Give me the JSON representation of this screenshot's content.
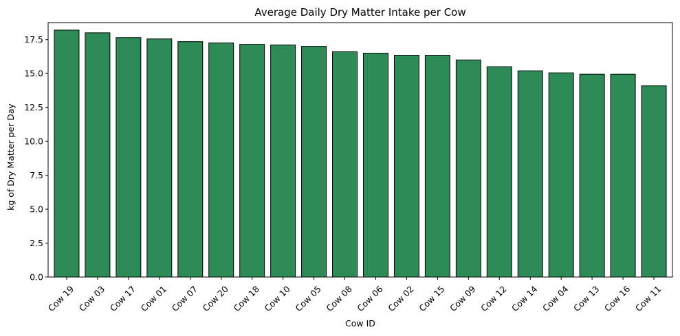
{
  "chart_data": {
    "type": "bar",
    "title": "Average Daily Dry Matter Intake per Cow",
    "xlabel": "Cow ID",
    "ylabel": "kg of Dry Matter per Day",
    "categories": [
      "Cow 19",
      "Cow 03",
      "Cow 17",
      "Cow 01",
      "Cow 07",
      "Cow 20",
      "Cow 18",
      "Cow 10",
      "Cow 05",
      "Cow 08",
      "Cow 06",
      "Cow 02",
      "Cow 15",
      "Cow 09",
      "Cow 12",
      "Cow 14",
      "Cow 04",
      "Cow 13",
      "Cow 16",
      "Cow 11"
    ],
    "values": [
      18.2,
      18.0,
      17.65,
      17.55,
      17.35,
      17.25,
      17.15,
      17.1,
      17.0,
      16.6,
      16.5,
      16.35,
      16.35,
      16.0,
      15.5,
      15.2,
      15.05,
      14.95,
      14.95,
      14.1
    ],
    "ylim": [
      0,
      18.75
    ],
    "yticks": [
      "0.0",
      "2.5",
      "5.0",
      "7.5",
      "10.0",
      "12.5",
      "15.0",
      "17.5"
    ],
    "bar_color": "#2e8b57",
    "edge_color": "#000000",
    "grid": false,
    "legend": "none"
  }
}
